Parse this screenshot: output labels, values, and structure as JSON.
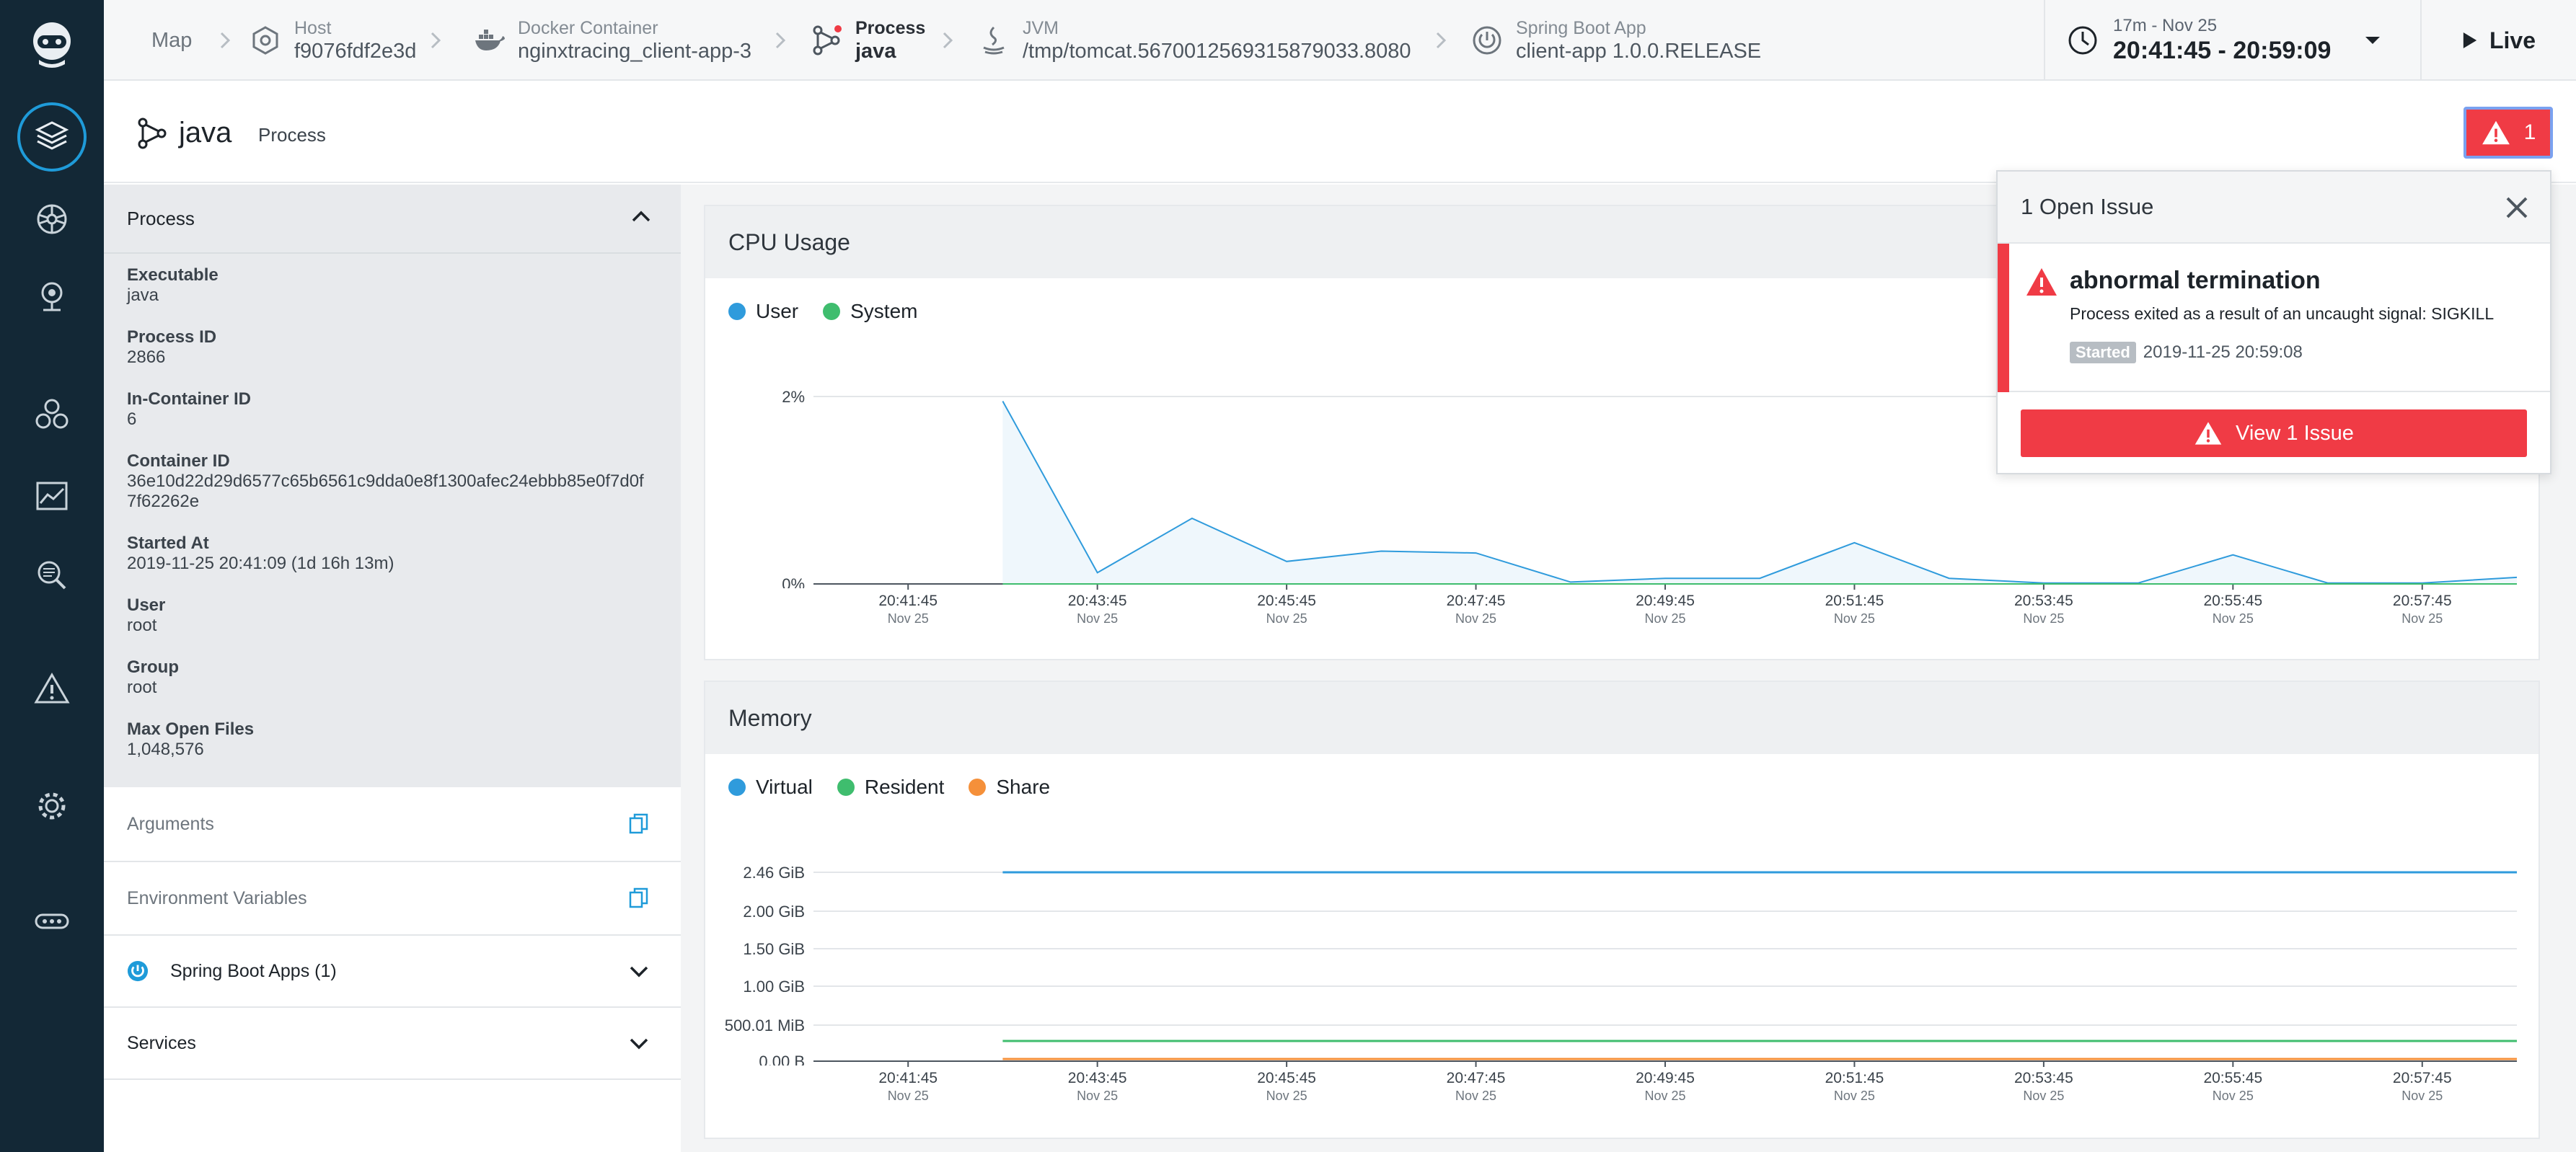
{
  "colors": {
    "rail": "#132836",
    "accent": "#1f9bd9",
    "danger": "#f03b45",
    "user": "#2f9bdc",
    "system": "#3fbd6e",
    "virtual": "#2f9bdc",
    "resident": "#3fbd6e",
    "share": "#f5903a"
  },
  "rail": {
    "items": [
      "logo-icon",
      "infrastructure-icon",
      "kubernetes-icon",
      "map-pin-icon",
      "services-icon",
      "dashboards-icon",
      "search-icon",
      "alerts-icon",
      "settings-icon",
      "more-icon"
    ]
  },
  "breadcrumb": {
    "map_label": "Map",
    "host": {
      "type": "Host",
      "value": "f9076fdf2e3d"
    },
    "container": {
      "type": "Docker Container",
      "value": "nginxtracing_client-app-3"
    },
    "process": {
      "type": "Process",
      "value": "java"
    },
    "jvm": {
      "type": "JVM",
      "value": "/tmp/tomcat.5670012569315879033.8080"
    },
    "springboot": {
      "type": "Spring Boot App",
      "value": "client-app 1.0.0.RELEASE"
    }
  },
  "timepicker": {
    "range": "17m - Nov 25",
    "span": "20:41:45 - 20:59:09"
  },
  "live_label": "Live",
  "entity": {
    "name": "java",
    "type": "Process",
    "issue_count": "1"
  },
  "process_panel": {
    "title": "Process",
    "properties": [
      {
        "key": "Executable",
        "value": "java"
      },
      {
        "key": "Process ID",
        "value": "2866"
      },
      {
        "key": "In-Container ID",
        "value": "6"
      },
      {
        "key": "Container ID",
        "value": "36e10d22d29d6577c65b6561c9dda0e8f1300afec24ebbb85e0f7d0f7f62262e"
      },
      {
        "key": "Started At",
        "value": "2019-11-25 20:41:09 (1d 16h 13m)"
      },
      {
        "key": "User",
        "value": "root"
      },
      {
        "key": "Group",
        "value": "root"
      },
      {
        "key": "Max Open Files",
        "value": "1,048,576"
      }
    ],
    "arguments_label": "Arguments",
    "env_label": "Environment Variables",
    "spring_label": "Spring Boot Apps (1)",
    "services_label": "Services"
  },
  "popover": {
    "title": "1 Open Issue",
    "issue_title": "abnormal termination",
    "issue_desc": "Process exited as a result of an uncaught signal: SIGKILL",
    "started_badge": "Started",
    "started_time": "2019-11-25 20:59:08",
    "view_button": "View 1 Issue"
  },
  "cpu_card": {
    "title": "CPU Usage",
    "legend": [
      "User",
      "System"
    ]
  },
  "memory_card": {
    "title": "Memory",
    "legend": [
      "Virtual",
      "Resident",
      "Share"
    ]
  },
  "chart_data": [
    {
      "type": "area",
      "title": "CPU Usage",
      "x": [
        "20:41:45",
        "20:42:45",
        "20:43:45",
        "20:44:45",
        "20:45:45",
        "20:46:45",
        "20:47:45",
        "20:48:45",
        "20:49:45",
        "20:50:45",
        "20:51:45",
        "20:52:45",
        "20:53:45",
        "20:54:45",
        "20:55:45",
        "20:56:45",
        "20:57:45",
        "20:58:45"
      ],
      "x_ticks": [
        "20:41:45",
        "20:43:45",
        "20:45:45",
        "20:47:45",
        "20:49:45",
        "20:51:45",
        "20:53:45",
        "20:55:45",
        "20:57:45"
      ],
      "x_sublabel": "Nov 25",
      "y_ticks": [
        "2%",
        "0%"
      ],
      "ylim": [
        0,
        2
      ],
      "series": [
        {
          "name": "User",
          "values": [
            null,
            1.95,
            0.12,
            0.7,
            0.24,
            0.35,
            0.33,
            0.02,
            0.06,
            0.06,
            0.44,
            0.06,
            0.01,
            0.01,
            0.31,
            0.01,
            0.01,
            0.07
          ]
        },
        {
          "name": "System",
          "values": [
            null,
            0,
            0,
            0,
            0,
            0,
            0,
            0,
            0,
            0,
            0,
            0,
            0,
            0,
            0,
            0,
            0,
            0
          ]
        }
      ]
    },
    {
      "type": "line",
      "title": "Memory",
      "x": [
        "20:41:45",
        "20:42:45",
        "20:58:45"
      ],
      "x_ticks": [
        "20:41:45",
        "20:43:45",
        "20:45:45",
        "20:47:45",
        "20:49:45",
        "20:51:45",
        "20:53:45",
        "20:55:45",
        "20:57:45"
      ],
      "x_sublabel": "Nov 25",
      "y_ticks": [
        "2.46 GiB",
        "2.00 GiB",
        "1.50 GiB",
        "1.00 GiB",
        "500.01 MiB",
        "0.00 B"
      ],
      "ylim": [
        0,
        2.46
      ],
      "y_unit": "GiB",
      "series": [
        {
          "name": "Virtual",
          "values": [
            null,
            2.46,
            2.46
          ]
        },
        {
          "name": "Resident",
          "values": [
            null,
            0.37,
            0.37
          ]
        },
        {
          "name": "Share",
          "values": [
            null,
            0.02,
            0.02
          ]
        }
      ]
    }
  ]
}
